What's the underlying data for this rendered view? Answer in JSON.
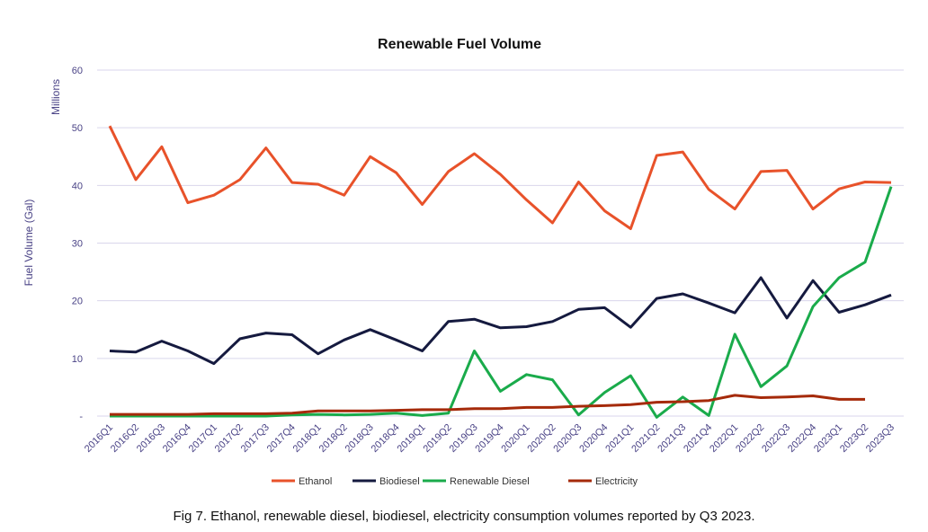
{
  "chart_data": {
    "type": "line",
    "title": "Renewable Fuel Volume",
    "ylabel": "Fuel Volume (Gal)",
    "yunit": "Millions",
    "xlabel": "",
    "ylim": [
      0,
      60
    ],
    "yticks": [
      0,
      10,
      20,
      30,
      40,
      50,
      60
    ],
    "ytick_labels": [
      "-",
      "10",
      "20",
      "30",
      "40",
      "50",
      "60"
    ],
    "grid": true,
    "legend_position": "bottom",
    "categories": [
      "2016Q1",
      "2016Q2",
      "2016Q3",
      "2016Q4",
      "2017Q1",
      "2017Q2",
      "2017Q3",
      "2017Q4",
      "2018Q1",
      "2018Q2",
      "2018Q3",
      "2018Q4",
      "2019Q1",
      "2019Q2",
      "2019Q3",
      "2019Q4",
      "2020Q1",
      "2020Q2",
      "2020Q3",
      "2020Q4",
      "2021Q1",
      "2021Q2",
      "2021Q3",
      "2021Q4",
      "2022Q1",
      "2022Q2",
      "2022Q3",
      "2022Q4",
      "2023Q1",
      "2023Q2",
      "2023Q3"
    ],
    "series": [
      {
        "name": "Ethanol",
        "color": "#e8522a",
        "values": [
          50.3,
          41.0,
          46.7,
          37.0,
          38.3,
          41.0,
          46.5,
          40.5,
          40.2,
          38.3,
          45.0,
          42.2,
          36.7,
          42.4,
          45.5,
          41.9,
          37.5,
          33.5,
          40.6,
          35.6,
          32.5,
          45.2,
          45.8,
          39.3,
          35.9,
          42.4,
          42.6,
          35.9,
          39.4,
          40.6,
          40.5
        ]
      },
      {
        "name": "Biodiesel",
        "color": "#151a3f",
        "values": [
          11.3,
          11.1,
          13.0,
          11.3,
          9.1,
          13.4,
          14.4,
          14.1,
          10.8,
          13.2,
          15.0,
          13.2,
          11.3,
          16.4,
          16.8,
          15.3,
          15.5,
          16.4,
          18.5,
          18.8,
          15.4,
          20.4,
          21.2,
          19.6,
          17.9,
          24.0,
          17.0,
          23.5,
          18.0,
          19.3,
          21.0
        ]
      },
      {
        "name": "Renewable Diesel",
        "color": "#1aab4b",
        "values": [
          0,
          0,
          0,
          0,
          0,
          0,
          0,
          0.2,
          0.3,
          0.2,
          0.3,
          0.5,
          0.1,
          0.5,
          11.3,
          4.3,
          7.2,
          6.3,
          0.2,
          4.1,
          7.0,
          -0.2,
          3.3,
          0.1,
          14.2,
          5.1,
          8.7,
          19.0,
          24.0,
          26.7,
          39.8
        ]
      },
      {
        "name": "Electricity",
        "color": "#a52a0a",
        "values": [
          0.3,
          0.3,
          0.3,
          0.3,
          0.4,
          0.4,
          0.4,
          0.5,
          0.9,
          0.9,
          0.9,
          1.0,
          1.1,
          1.1,
          1.3,
          1.3,
          1.5,
          1.5,
          1.7,
          1.8,
          2.0,
          2.4,
          2.5,
          2.7,
          3.6,
          3.2,
          3.3,
          3.5,
          2.9,
          2.9,
          null
        ]
      }
    ]
  },
  "caption": "Fig 7. Ethanol, renewable diesel, biodiesel, electricity consumption volumes reported by Q3 2023."
}
